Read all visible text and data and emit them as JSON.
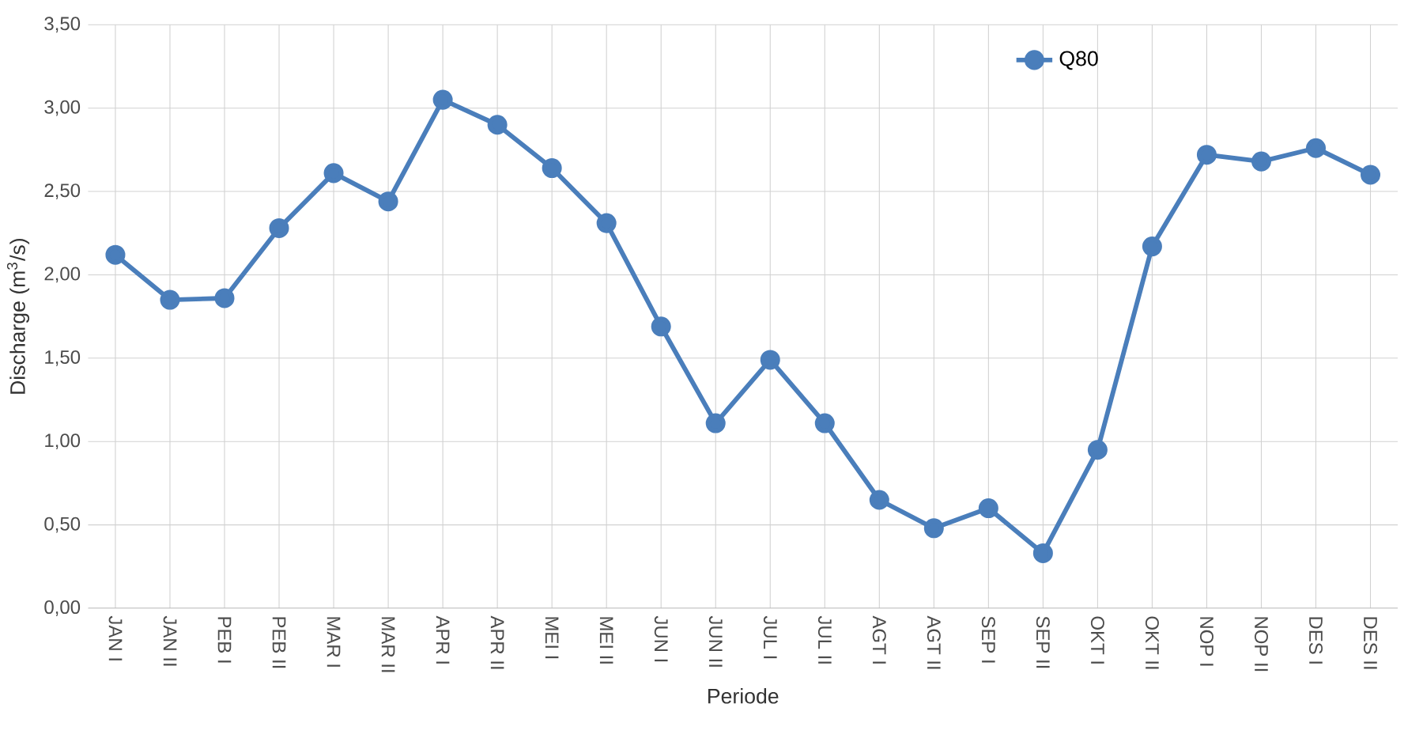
{
  "chart_data": {
    "type": "line",
    "xlabel": "Periode",
    "ylabel": "Discharge (m$^{3}$/s)",
    "categories": [
      "JAN I",
      "JAN II",
      "PEB I",
      "PEB II",
      "MAR I",
      "MAR II",
      "APR I",
      "APR II",
      "MEI I",
      "MEI II",
      "JUN I",
      "JUN II",
      "JUL I",
      "JUL II",
      "AGT I",
      "AGT II",
      "SEP I",
      "SEP II",
      "OKT I",
      "OKT II",
      "NOP I",
      "NOP II",
      "DES I",
      "DES II"
    ],
    "series": [
      {
        "name": "Q80",
        "color": "#4a7ebb",
        "values": [
          2.12,
          1.85,
          1.86,
          2.28,
          2.61,
          2.44,
          3.05,
          2.9,
          2.64,
          2.31,
          1.69,
          1.11,
          1.49,
          1.11,
          0.65,
          0.48,
          0.6,
          0.33,
          0.95,
          2.17,
          2.72,
          2.68,
          2.76,
          2.6
        ]
      }
    ],
    "ylim": [
      0,
      3.5
    ],
    "yticks": [
      {
        "value": 0,
        "label": "0,00"
      },
      {
        "value": 0.5,
        "label": "0,50"
      },
      {
        "value": 1,
        "label": "1,00"
      },
      {
        "value": 1.5,
        "label": "1,50"
      },
      {
        "value": 2,
        "label": "2,00"
      },
      {
        "value": 2.5,
        "label": "2,50"
      },
      {
        "value": 3,
        "label": "3,00"
      },
      {
        "value": 3.5,
        "label": "3,50"
      }
    ],
    "grid": true,
    "legend": "top right",
    "marker": "circle",
    "line_style": "solid"
  }
}
